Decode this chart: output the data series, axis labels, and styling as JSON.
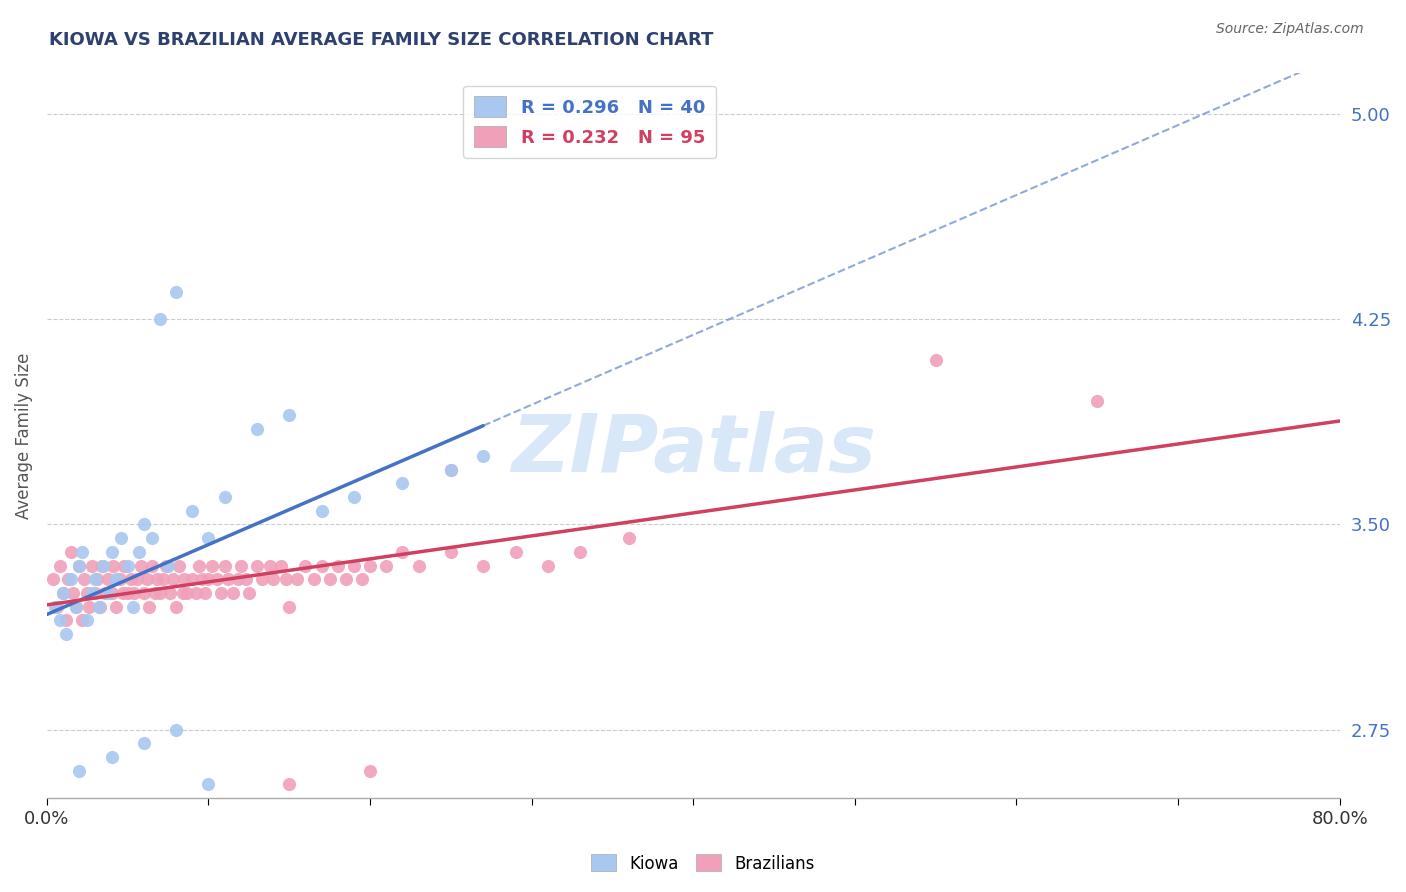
{
  "title": "KIOWA VS BRAZILIAN AVERAGE FAMILY SIZE CORRELATION CHART",
  "source": "Source: ZipAtlas.com",
  "ylabel": "Average Family Size",
  "xlim": [
    0.0,
    0.8
  ],
  "ylim": [
    2.5,
    5.15
  ],
  "yticks": [
    2.75,
    3.5,
    4.25,
    5.0
  ],
  "kiowa_R": 0.296,
  "kiowa_N": 40,
  "brazilian_R": 0.232,
  "brazilian_N": 95,
  "kiowa_color": "#a8c8f0",
  "kiowa_line_color": "#4472c4",
  "brazilian_color": "#f0a0b8",
  "brazilian_line_color": "#d04060",
  "background_color": "#ffffff",
  "grid_color": "#cccccc",
  "title_color": "#2e4070",
  "axis_label_color": "#4472c4",
  "watermark": "ZIPatlas",
  "watermark_color": "#d8e8f8",
  "kiowa_x": [
    0.005,
    0.008,
    0.01,
    0.012,
    0.015,
    0.018,
    0.02,
    0.022,
    0.025,
    0.028,
    0.03,
    0.032,
    0.035,
    0.038,
    0.04,
    0.043,
    0.046,
    0.05,
    0.053,
    0.057,
    0.06,
    0.065,
    0.07,
    0.075,
    0.08,
    0.09,
    0.1,
    0.11,
    0.13,
    0.15,
    0.17,
    0.19,
    0.22,
    0.25,
    0.27,
    0.02,
    0.04,
    0.06,
    0.08,
    0.1
  ],
  "kiowa_y": [
    3.2,
    3.15,
    3.25,
    3.1,
    3.3,
    3.2,
    3.35,
    3.4,
    3.15,
    3.25,
    3.3,
    3.2,
    3.35,
    3.25,
    3.4,
    3.3,
    3.45,
    3.35,
    3.2,
    3.4,
    3.5,
    3.45,
    4.25,
    3.35,
    4.35,
    3.55,
    3.45,
    3.6,
    3.85,
    3.9,
    3.55,
    3.6,
    3.65,
    3.7,
    3.75,
    2.6,
    2.65,
    2.7,
    2.75,
    2.55
  ],
  "brazilian_x": [
    0.004,
    0.006,
    0.008,
    0.01,
    0.012,
    0.013,
    0.015,
    0.016,
    0.018,
    0.02,
    0.022,
    0.023,
    0.025,
    0.026,
    0.028,
    0.03,
    0.031,
    0.033,
    0.034,
    0.036,
    0.038,
    0.04,
    0.041,
    0.043,
    0.045,
    0.047,
    0.048,
    0.05,
    0.052,
    0.054,
    0.056,
    0.058,
    0.06,
    0.062,
    0.063,
    0.065,
    0.067,
    0.068,
    0.07,
    0.072,
    0.074,
    0.076,
    0.078,
    0.08,
    0.082,
    0.084,
    0.085,
    0.087,
    0.09,
    0.092,
    0.094,
    0.096,
    0.098,
    0.1,
    0.102,
    0.105,
    0.108,
    0.11,
    0.112,
    0.115,
    0.118,
    0.12,
    0.123,
    0.125,
    0.13,
    0.133,
    0.138,
    0.14,
    0.145,
    0.148,
    0.15,
    0.155,
    0.16,
    0.165,
    0.17,
    0.175,
    0.18,
    0.185,
    0.19,
    0.195,
    0.2,
    0.21,
    0.22,
    0.23,
    0.25,
    0.27,
    0.29,
    0.31,
    0.33,
    0.36,
    0.15,
    0.2,
    0.25,
    0.55,
    0.65
  ],
  "brazilian_y": [
    3.3,
    3.2,
    3.35,
    3.25,
    3.15,
    3.3,
    3.4,
    3.25,
    3.2,
    3.35,
    3.15,
    3.3,
    3.25,
    3.2,
    3.35,
    3.25,
    3.3,
    3.2,
    3.35,
    3.25,
    3.3,
    3.25,
    3.35,
    3.2,
    3.3,
    3.25,
    3.35,
    3.25,
    3.3,
    3.25,
    3.3,
    3.35,
    3.25,
    3.3,
    3.2,
    3.35,
    3.25,
    3.3,
    3.25,
    3.3,
    3.35,
    3.25,
    3.3,
    3.2,
    3.35,
    3.25,
    3.3,
    3.25,
    3.3,
    3.25,
    3.35,
    3.3,
    3.25,
    3.3,
    3.35,
    3.3,
    3.25,
    3.35,
    3.3,
    3.25,
    3.3,
    3.35,
    3.3,
    3.25,
    3.35,
    3.3,
    3.35,
    3.3,
    3.35,
    3.3,
    3.2,
    3.3,
    3.35,
    3.3,
    3.35,
    3.3,
    3.35,
    3.3,
    3.35,
    3.3,
    3.35,
    3.35,
    3.4,
    3.35,
    3.4,
    3.35,
    3.4,
    3.35,
    3.4,
    3.45,
    2.55,
    2.6,
    3.7,
    4.1,
    3.95
  ]
}
